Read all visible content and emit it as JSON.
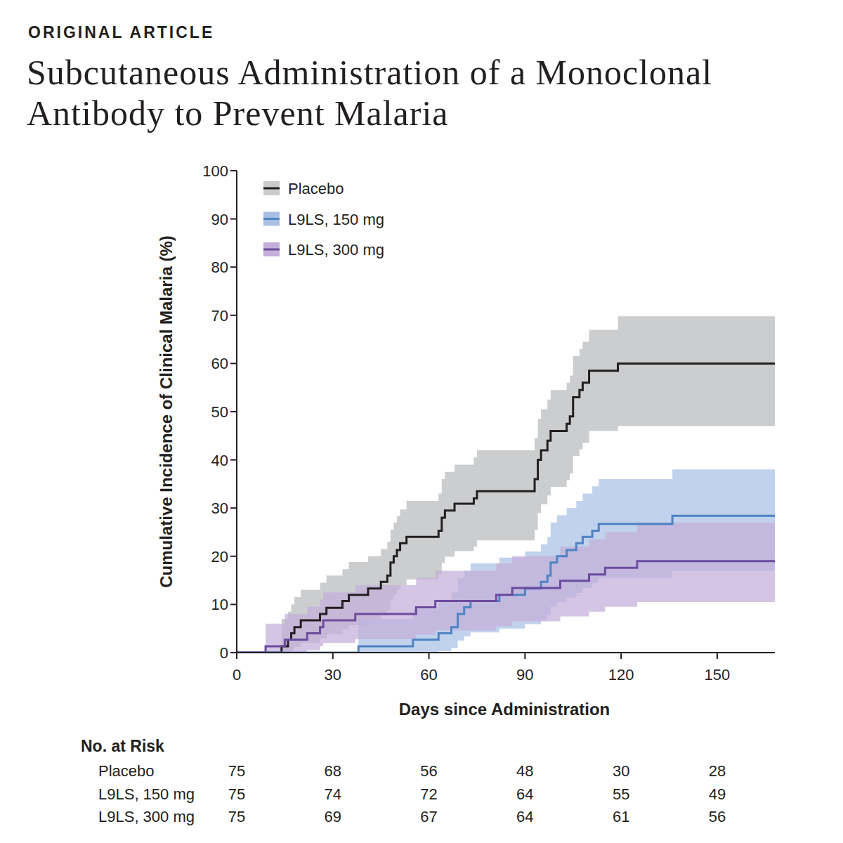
{
  "chart_data": {
    "type": "line",
    "header": "ORIGINAL ARTICLE",
    "title": [
      "Subcutaneous Administration of a Monoclonal",
      "Antibody to Prevent Malaria"
    ],
    "x_label": "Days since Administration",
    "y_label": "Cumulative Incidence of Clinical Malaria (%)",
    "xlim": [
      0,
      168
    ],
    "ylim": [
      0,
      100
    ],
    "xticks": [
      0,
      30,
      60,
      90,
      120,
      150
    ],
    "yticks": [
      0,
      10,
      20,
      30,
      40,
      50,
      60,
      70,
      80,
      90,
      100
    ],
    "grid": false,
    "legend": "top-left",
    "line_style": "step",
    "series": [
      {
        "name": "Placebo",
        "color": "#231f20",
        "band_color": "#c9cacc",
        "x": [
          0,
          14,
          16,
          17,
          18,
          20,
          26,
          28,
          33,
          35,
          41,
          45,
          47,
          48,
          49,
          50,
          51,
          53,
          63,
          64,
          65,
          68,
          74,
          75,
          93,
          94,
          95,
          97,
          98,
          103,
          104,
          105,
          107,
          108,
          110,
          119,
          168
        ],
        "values": [
          0,
          1.3,
          2.7,
          4,
          5.3,
          6.7,
          8,
          9.3,
          10.7,
          12,
          13.3,
          14.7,
          16,
          18.7,
          20,
          21.3,
          22.7,
          24,
          25.3,
          28,
          29.5,
          30.9,
          32,
          33.5,
          36,
          40,
          42,
          44,
          46,
          47.5,
          49,
          53,
          54.5,
          56,
          58.5,
          60,
          60
        ],
        "lower": [
          0,
          0,
          0,
          0.5,
          1.2,
          2,
          3,
          3.8,
          4.8,
          5.7,
          6.8,
          7.8,
          8.9,
          11,
          12,
          13,
          14,
          15.2,
          16.3,
          18.6,
          19.9,
          21.1,
          22,
          23.3,
          25.5,
          29,
          30.8,
          32.6,
          34.4,
          35.8,
          37.2,
          40.8,
          42.2,
          43.5,
          46,
          47,
          47
        ],
        "upper": [
          0,
          7,
          8.5,
          10,
          11.5,
          13,
          14.5,
          16,
          17.3,
          18.8,
          20,
          21.5,
          23,
          25.5,
          27,
          28.3,
          29.7,
          31.5,
          33,
          36,
          37.5,
          39,
          40.5,
          42,
          44.5,
          48.5,
          50.5,
          52.5,
          54.5,
          56,
          57.5,
          61.5,
          63,
          64.5,
          67,
          69.8,
          69.8
        ]
      },
      {
        "name": "L9LS, 150 mg",
        "color": "#4f83c4",
        "band_color": "#a9c0e4",
        "x": [
          0,
          38,
          55,
          63,
          67,
          69,
          71,
          73,
          82,
          90,
          95,
          97,
          98,
          100,
          103,
          106,
          108,
          111,
          113,
          136,
          168
        ],
        "values": [
          0,
          1.3,
          2.7,
          4,
          5.3,
          8,
          9.4,
          10.7,
          12,
          13.3,
          14.7,
          16,
          18.7,
          20,
          21.3,
          22.7,
          24,
          25.3,
          26.7,
          28.4,
          28.4
        ],
        "lower": [
          0,
          0,
          0,
          0.3,
          1,
          2.5,
          3.4,
          4.2,
          5,
          5.9,
          6.8,
          7.8,
          9.5,
          10.5,
          11.4,
          12.4,
          13.4,
          14.4,
          15.5,
          17,
          17
        ],
        "upper": [
          0,
          7,
          9,
          11,
          12.5,
          15.5,
          17,
          18.5,
          19.7,
          21,
          22.5,
          24,
          27,
          28.5,
          30,
          31.5,
          33,
          34.5,
          36,
          38,
          38
        ]
      },
      {
        "name": "L9LS, 300 mg",
        "color": "#6b4b9e",
        "band_color": "#c3afd9",
        "x": [
          0,
          9,
          15,
          22,
          26,
          27,
          37,
          56,
          62,
          81,
          86,
          101,
          110,
          115,
          125,
          168
        ],
        "values": [
          0,
          1.3,
          2.7,
          4,
          5.3,
          6.7,
          8,
          9.4,
          10.7,
          12,
          13.4,
          14.9,
          16.2,
          17.6,
          19,
          19
        ],
        "lower": [
          0,
          0,
          0,
          0.5,
          1.3,
          2,
          2.8,
          3.7,
          4.6,
          5.5,
          6.5,
          7.5,
          8.5,
          9.5,
          10.5,
          10.5
        ],
        "upper": [
          0,
          6,
          8,
          9.5,
          11,
          12.5,
          14,
          15.5,
          17,
          18.5,
          20,
          22,
          23.5,
          25,
          27,
          27
        ]
      }
    ],
    "at_risk": {
      "title": "No. at Risk",
      "rows": [
        {
          "name": "Placebo",
          "values": [
            75,
            68,
            56,
            48,
            30,
            28
          ]
        },
        {
          "name": "L9LS, 150 mg",
          "values": [
            75,
            74,
            72,
            64,
            55,
            49
          ]
        },
        {
          "name": "L9LS, 300 mg",
          "values": [
            75,
            69,
            67,
            64,
            61,
            56
          ]
        }
      ]
    }
  }
}
